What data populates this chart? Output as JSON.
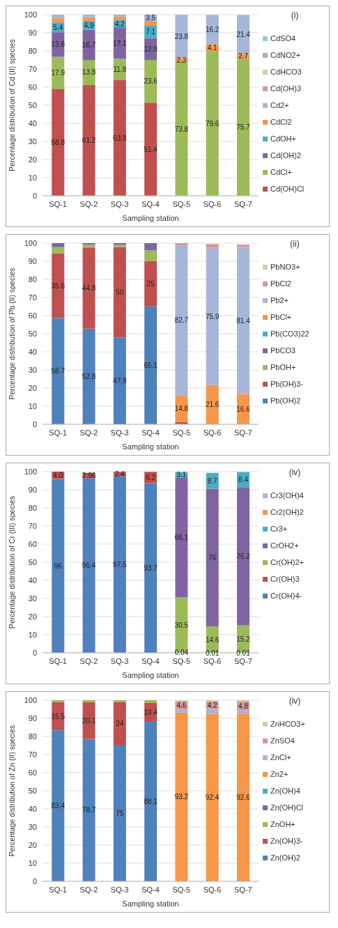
{
  "chart_data": [
    {
      "type": "bar",
      "annotations": [
        "(i)"
      ],
      "stacked": true,
      "xlabel": "Sampling station",
      "ylabel": "Percentage distribution of Cd (II) species",
      "categories": [
        "SQ-1",
        "SQ-2",
        "SQ-3",
        "SQ-4",
        "SQ-5",
        "SQ-6",
        "SQ-7"
      ],
      "ylim": [
        0,
        100
      ],
      "yticks": [
        0,
        10,
        20,
        30,
        40,
        50,
        60,
        70,
        80,
        90,
        100
      ],
      "grid": "y",
      "legend": "right",
      "series": [
        {
          "name": "Cd(OH)Cl",
          "color": "#c0504d",
          "values": [
            58.8,
            61.2,
            63.8,
            51.4,
            null,
            null,
            null
          ],
          "value_labels": [
            "58.8",
            "61.2",
            "63.8",
            "51.4",
            null,
            null,
            null
          ]
        },
        {
          "name": "CdCl+",
          "color": "#9bbb59",
          "values": [
            17.9,
            13.8,
            11.8,
            23.6,
            73.8,
            79.6,
            75.7
          ],
          "value_labels": [
            "17.9",
            "13.8",
            "11.8",
            "23.6",
            "73.8",
            "79.6",
            "75.7"
          ]
        },
        {
          "name": "Cd(OH)2",
          "color": "#8064a2",
          "values": [
            13.6,
            16.7,
            17.1,
            12.0,
            null,
            null,
            null
          ],
          "value_labels": [
            "13.6",
            "16.7",
            "17.1",
            "12.0",
            null,
            null,
            null
          ]
        },
        {
          "name": "CdOH+",
          "color": "#4bacc6",
          "values": [
            5.4,
            4.9,
            4.2,
            7.1,
            null,
            null,
            null
          ],
          "value_labels": [
            "5.4",
            "4.9",
            "4.2",
            "7.1",
            null,
            null,
            null
          ]
        },
        {
          "name": "CdCl2",
          "color": "#f79646",
          "values": [
            2.3,
            2.0,
            2.0,
            2.4,
            2.3,
            4.1,
            2.7
          ],
          "value_labels": [
            null,
            null,
            null,
            null,
            "2.3",
            "4.1",
            "2.7"
          ]
        },
        {
          "name": "Cd2+",
          "color": "#a5b6d8",
          "values": [
            2.0,
            1.4,
            1.1,
            3.5,
            23.8,
            16.2,
            21.4
          ],
          "value_labels": [
            null,
            null,
            null,
            "3.5",
            "23.8",
            "16.2",
            "21.4"
          ]
        },
        {
          "name": "Cd(OH)3",
          "color": "#d99694",
          "values": [
            null,
            null,
            null,
            null,
            null,
            null,
            null
          ]
        },
        {
          "name": "CdHCO3",
          "color": "#c3d69b",
          "values": [
            null,
            null,
            null,
            null,
            null,
            null,
            null
          ]
        },
        {
          "name": "CdNO2+",
          "color": "#b3a2c7",
          "values": [
            null,
            null,
            null,
            null,
            null,
            null,
            null
          ]
        },
        {
          "name": "CdSO4",
          "color": "#92cddc",
          "values": [
            null,
            null,
            null,
            null,
            null,
            null,
            null
          ]
        }
      ]
    },
    {
      "type": "bar",
      "annotations": [
        "(ii)"
      ],
      "stacked": true,
      "xlabel": "Sampling station",
      "ylabel": "Percentage distribution of Pb (II) species",
      "categories": [
        "SQ-1",
        "SQ-2",
        "SQ-3",
        "SQ-4",
        "SQ-5",
        "SQ-6",
        "SQ-7"
      ],
      "ylim": [
        0,
        100
      ],
      "yticks": [
        0,
        10,
        20,
        30,
        40,
        50,
        60,
        70,
        80,
        90,
        100
      ],
      "grid": "y",
      "legend": "right",
      "series": [
        {
          "name": "Pb(OH)2",
          "color": "#4f81bd",
          "values": [
            58.7,
            52.8,
            47.9,
            65.1,
            null,
            null,
            null
          ],
          "value_labels": [
            "58.7",
            "52.8",
            "47.9",
            "65.1",
            null,
            null,
            null
          ]
        },
        {
          "name": "Pb(OH)3-",
          "color": "#c0504d",
          "values": [
            35.6,
            44.8,
            50,
            25,
            1.3,
            null,
            null
          ],
          "value_labels": [
            "35.6",
            "44.8",
            "50",
            "25",
            null,
            null,
            null
          ]
        },
        {
          "name": "PbOH+",
          "color": "#9bbb59",
          "values": [
            3.5,
            1.5,
            1.1,
            5.9,
            null,
            null,
            null
          ]
        },
        {
          "name": "PbCO3",
          "color": "#8064a2",
          "values": [
            2.2,
            0.9,
            1.0,
            4.0,
            null,
            null,
            null
          ]
        },
        {
          "name": "Pb(CO3)22",
          "color": "#4bacc6",
          "values": [
            null,
            null,
            null,
            null,
            null,
            null,
            null
          ]
        },
        {
          "name": "PbCl+",
          "color": "#f79646",
          "values": [
            null,
            null,
            null,
            null,
            14.8,
            21.6,
            16.6
          ],
          "value_labels": [
            null,
            null,
            null,
            null,
            "14.8",
            "21.6",
            "16.6"
          ]
        },
        {
          "name": "Pb2+",
          "color": "#a5b6d8",
          "values": [
            null,
            null,
            null,
            null,
            82.7,
            75.9,
            81.4
          ],
          "value_labels": [
            null,
            null,
            null,
            null,
            "82.7",
            "75.9",
            "81.4"
          ]
        },
        {
          "name": "PbCl2",
          "color": "#d99694",
          "values": [
            null,
            null,
            null,
            null,
            1.2,
            2.0,
            1.2
          ]
        },
        {
          "name": "PbNO3+",
          "color": "#c3d69b",
          "values": [
            null,
            null,
            null,
            null,
            null,
            null,
            null
          ]
        }
      ]
    },
    {
      "type": "bar",
      "annotations": [
        "(iv)"
      ],
      "stacked": true,
      "xlabel": "Sampling station",
      "ylabel": "Percentage distribution of Cr (III) species",
      "categories": [
        "SQ-1",
        "SQ-2",
        "SQ-3",
        "SQ-4",
        "SQ-5",
        "SQ-6",
        "SQ-7"
      ],
      "ylim": [
        0,
        100
      ],
      "yticks": [
        0,
        10,
        20,
        30,
        40,
        50,
        60,
        70,
        80,
        90,
        100
      ],
      "grid": "y",
      "legend": "right",
      "series": [
        {
          "name": "Cr(OH)4-",
          "color": "#4f81bd",
          "values": [
            96,
            96.4,
            97.5,
            93.7,
            0.04,
            0.01,
            0.01
          ],
          "value_labels": [
            "96",
            "96.4",
            "97.5",
            "93.7",
            "0.04",
            "0.01",
            "0.01"
          ]
        },
        {
          "name": "Cr(OH)3",
          "color": "#c0504d",
          "values": [
            4.0,
            2.96,
            2.4,
            6.2,
            null,
            null,
            null
          ],
          "value_labels": [
            "4.0",
            "2.96",
            "2.4",
            "6.2",
            null,
            null,
            null
          ]
        },
        {
          "name": "Cr(OH)2+",
          "color": "#9bbb59",
          "values": [
            null,
            null,
            null,
            null,
            30.5,
            14.6,
            15.2
          ],
          "value_labels": [
            null,
            null,
            null,
            null,
            "30.5",
            "14.6",
            "15.2"
          ]
        },
        {
          "name": "CrOH2+",
          "color": "#8064a2",
          "values": [
            null,
            null,
            null,
            null,
            66.1,
            76,
            76.2
          ],
          "value_labels": [
            null,
            null,
            null,
            null,
            "66.1",
            "76",
            "76.2"
          ]
        },
        {
          "name": "Cr3+",
          "color": "#4bacc6",
          "values": [
            null,
            null,
            null,
            null,
            3.1,
            8.7,
            8.4
          ],
          "value_labels": [
            null,
            null,
            null,
            null,
            "3.1",
            "8.7",
            "8.4"
          ]
        },
        {
          "name": "Cr2(OH)2",
          "color": "#f79646",
          "values": [
            null,
            null,
            null,
            null,
            null,
            null,
            null
          ]
        },
        {
          "name": "Cr3(OH)4",
          "color": "#a5b6d8",
          "values": [
            null,
            null,
            null,
            null,
            null,
            null,
            null
          ]
        }
      ]
    },
    {
      "type": "bar",
      "annotations": [
        "(iv)"
      ],
      "stacked": true,
      "xlabel": "Sampling station",
      "ylabel": "Percentage distribution of Zn (II) species",
      "categories": [
        "SQ-1",
        "SQ-2",
        "SQ-3",
        "SQ-4",
        "SQ-5",
        "SQ-6",
        "SQ-7"
      ],
      "ylim": [
        0,
        100
      ],
      "yticks": [
        0,
        10,
        20,
        30,
        40,
        50,
        60,
        70,
        80,
        90,
        100
      ],
      "grid": "y",
      "legend": "right",
      "series": [
        {
          "name": "Zn(OH)2",
          "color": "#4f81bd",
          "values": [
            83.4,
            78.7,
            75,
            88.1,
            null,
            null,
            null
          ],
          "value_labels": [
            "83.4",
            "78.7",
            "75",
            "88.1",
            null,
            null,
            null
          ]
        },
        {
          "name": "Zn(OH)3-",
          "color": "#c0504d",
          "values": [
            15.5,
            20.1,
            24,
            10.4,
            null,
            null,
            null
          ],
          "value_labels": [
            "15.5",
            "20.1",
            "24",
            "10.4",
            null,
            null,
            null
          ]
        },
        {
          "name": "ZnOH+",
          "color": "#9bbb59",
          "values": [
            1.1,
            1.2,
            1.0,
            1.5,
            null,
            null,
            null
          ]
        },
        {
          "name": "Zn(OH)Cl",
          "color": "#8064a2",
          "values": [
            null,
            null,
            null,
            null,
            null,
            null,
            null
          ]
        },
        {
          "name": "Zn(OH)4",
          "color": "#4bacc6",
          "values": [
            null,
            null,
            null,
            null,
            null,
            null,
            null
          ]
        },
        {
          "name": "Zn2+",
          "color": "#f79646",
          "values": [
            null,
            null,
            null,
            null,
            93.2,
            92.4,
            92.6
          ],
          "value_labels": [
            null,
            null,
            null,
            null,
            "93.2",
            "92.4",
            "92.6"
          ]
        },
        {
          "name": "ZnCl+",
          "color": "#a5b6d8",
          "values": [
            null,
            null,
            null,
            null,
            1.6,
            2.8,
            1.8
          ]
        },
        {
          "name": "ZnSO4",
          "color": "#d99694",
          "values": [
            null,
            null,
            null,
            null,
            4.6,
            4.2,
            4.8
          ],
          "value_labels": [
            null,
            null,
            null,
            null,
            "4.6",
            "4.2",
            "4.8"
          ]
        },
        {
          "name": "ZnHCO3+",
          "color": "#c3d69b",
          "values": [
            null,
            null,
            null,
            null,
            0.6,
            0.6,
            0.8
          ]
        }
      ]
    }
  ]
}
